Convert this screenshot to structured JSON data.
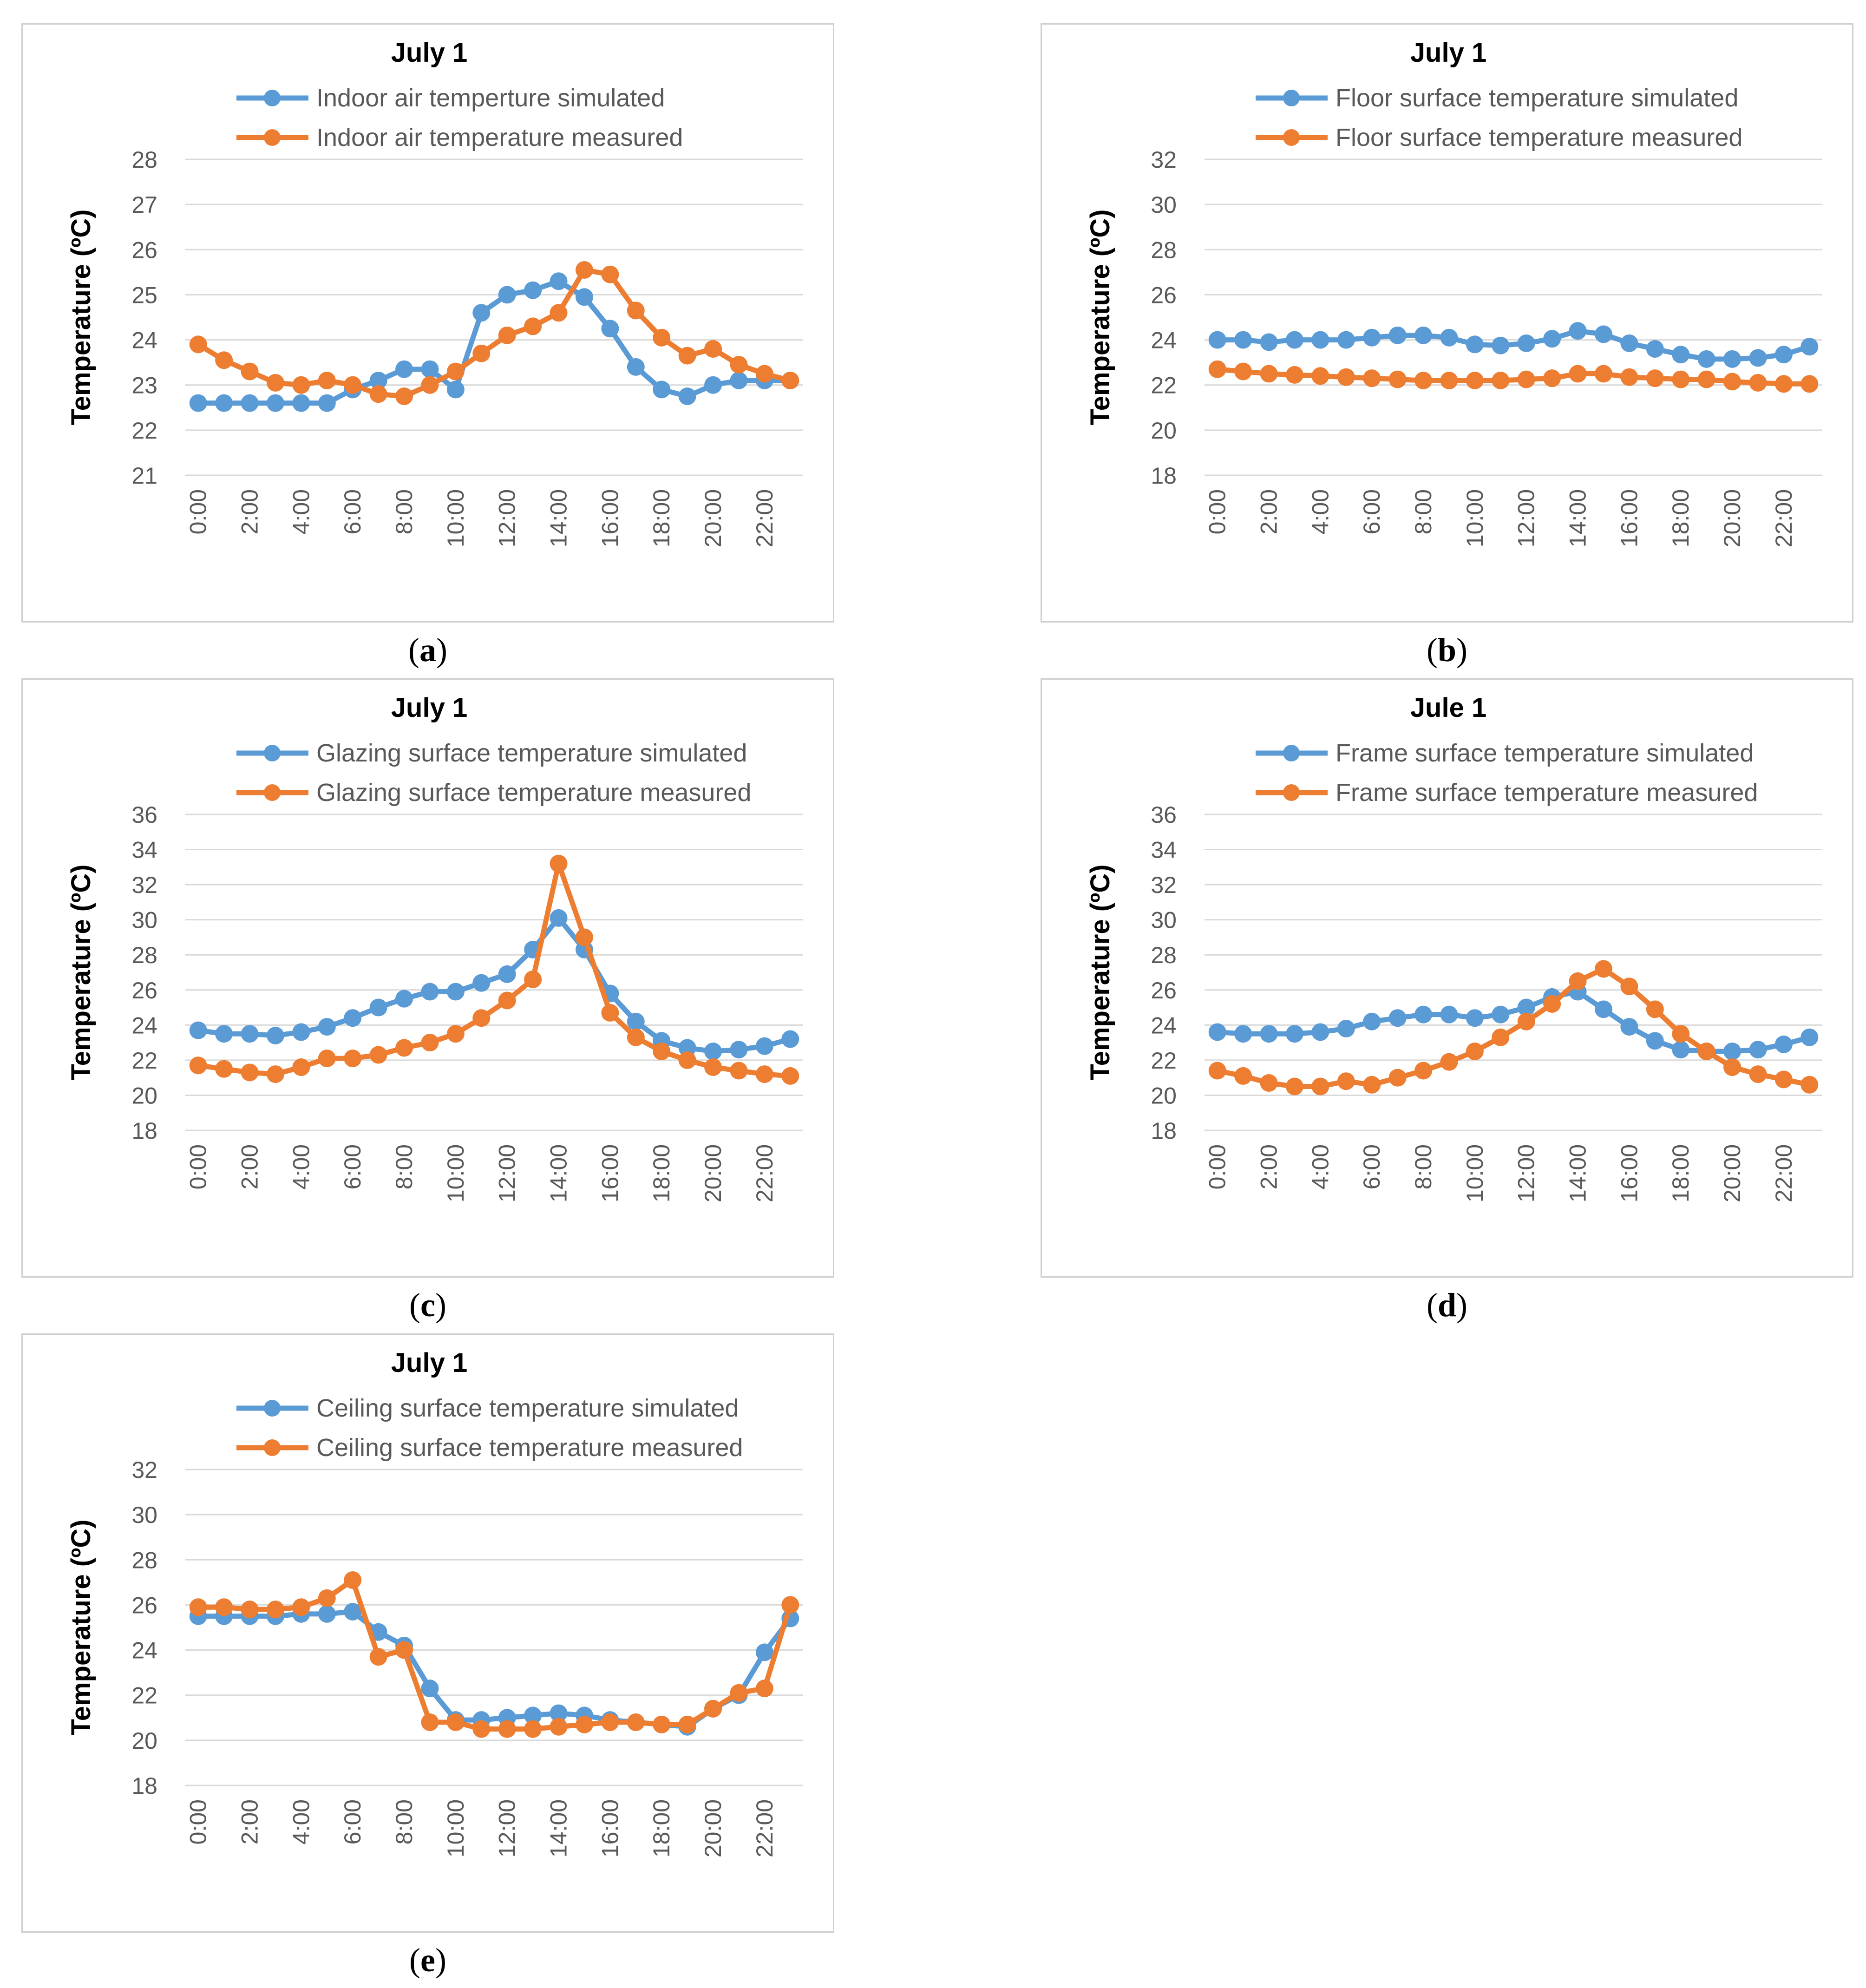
{
  "colors": {
    "simulated": "#5b9bd5",
    "measured": "#ed7d31"
  },
  "chart_data": [
    {
      "type": "line",
      "panel_label": "a",
      "title": "July 1",
      "ylabel": "Temperature (ºC)",
      "xlabel": "",
      "ylim": [
        21,
        28
      ],
      "yticks": [
        21,
        22,
        23,
        24,
        25,
        26,
        27,
        28
      ],
      "x": [
        0,
        1,
        2,
        3,
        4,
        5,
        6,
        7,
        8,
        9,
        10,
        11,
        12,
        13,
        14,
        15,
        16,
        17,
        18,
        19,
        20,
        21,
        22,
        23
      ],
      "xtick_labels": [
        "0:00",
        "2:00",
        "4:00",
        "6:00",
        "8:00",
        "10:00",
        "12:00",
        "14:00",
        "16:00",
        "18:00",
        "20:00",
        "22:00"
      ],
      "series": [
        {
          "name": "Indoor air temperture simulated",
          "values": [
            22.6,
            22.6,
            22.6,
            22.6,
            22.6,
            22.6,
            22.9,
            23.1,
            23.35,
            23.35,
            22.9,
            24.6,
            25.0,
            25.1,
            25.3,
            24.95,
            24.25,
            23.4,
            22.9,
            22.75,
            23.0,
            23.1,
            23.1,
            23.1
          ]
        },
        {
          "name": "Indoor air temperature measured",
          "values": [
            23.9,
            23.55,
            23.3,
            23.05,
            23.0,
            23.1,
            23.0,
            22.8,
            22.75,
            23.0,
            23.3,
            23.7,
            24.1,
            24.3,
            24.6,
            25.55,
            25.45,
            24.65,
            24.05,
            23.65,
            23.8,
            23.45,
            23.25,
            23.1
          ]
        }
      ]
    },
    {
      "type": "line",
      "panel_label": "b",
      "title": "July 1",
      "ylabel": "Temperature (ºC)",
      "xlabel": "",
      "ylim": [
        18,
        32
      ],
      "yticks": [
        18,
        20,
        22,
        24,
        26,
        28,
        30,
        32
      ],
      "x": [
        0,
        1,
        2,
        3,
        4,
        5,
        6,
        7,
        8,
        9,
        10,
        11,
        12,
        13,
        14,
        15,
        16,
        17,
        18,
        19,
        20,
        21,
        22,
        23
      ],
      "xtick_labels": [
        "0:00",
        "2:00",
        "4:00",
        "6:00",
        "8:00",
        "10:00",
        "12:00",
        "14:00",
        "16:00",
        "18:00",
        "20:00",
        "22:00"
      ],
      "series": [
        {
          "name": "Floor surface temperature simulated",
          "values": [
            24.0,
            24.0,
            23.9,
            24.0,
            24.0,
            24.0,
            24.1,
            24.2,
            24.2,
            24.1,
            23.8,
            23.75,
            23.85,
            24.05,
            24.4,
            24.25,
            23.85,
            23.6,
            23.35,
            23.15,
            23.15,
            23.2,
            23.35,
            23.7
          ]
        },
        {
          "name": "Floor surface temperature measured",
          "values": [
            22.7,
            22.6,
            22.5,
            22.45,
            22.4,
            22.35,
            22.3,
            22.25,
            22.2,
            22.2,
            22.2,
            22.2,
            22.25,
            22.3,
            22.5,
            22.5,
            22.35,
            22.3,
            22.25,
            22.25,
            22.15,
            22.1,
            22.05,
            22.05
          ]
        }
      ]
    },
    {
      "type": "line",
      "panel_label": "c",
      "title": "July 1",
      "ylabel": "Temperature (ºC)",
      "xlabel": "",
      "ylim": [
        18,
        36
      ],
      "yticks": [
        18,
        20,
        22,
        24,
        26,
        28,
        30,
        32,
        34,
        36
      ],
      "x": [
        0,
        1,
        2,
        3,
        4,
        5,
        6,
        7,
        8,
        9,
        10,
        11,
        12,
        13,
        14,
        15,
        16,
        17,
        18,
        19,
        20,
        21,
        22,
        23
      ],
      "xtick_labels": [
        "0:00",
        "2:00",
        "4:00",
        "6:00",
        "8:00",
        "10:00",
        "12:00",
        "14:00",
        "16:00",
        "18:00",
        "20:00",
        "22:00"
      ],
      "series": [
        {
          "name": "Glazing surface temperature simulated",
          "values": [
            23.7,
            23.5,
            23.5,
            23.4,
            23.6,
            23.9,
            24.4,
            25.0,
            25.5,
            25.9,
            25.9,
            26.4,
            26.9,
            28.3,
            30.1,
            28.3,
            25.8,
            24.2,
            23.1,
            22.7,
            22.5,
            22.6,
            22.8,
            23.2
          ]
        },
        {
          "name": "Glazing surface temperature measured",
          "values": [
            21.7,
            21.5,
            21.3,
            21.2,
            21.6,
            22.1,
            22.1,
            22.3,
            22.7,
            23.0,
            23.5,
            24.4,
            25.4,
            26.6,
            33.2,
            29.0,
            24.7,
            23.3,
            22.5,
            22.0,
            21.6,
            21.4,
            21.2,
            21.1
          ]
        }
      ]
    },
    {
      "type": "line",
      "panel_label": "d",
      "title": "Jule 1",
      "ylabel": "Temperature (ºC)",
      "xlabel": "",
      "ylim": [
        18,
        36
      ],
      "yticks": [
        18,
        20,
        22,
        24,
        26,
        28,
        30,
        32,
        34,
        36
      ],
      "x": [
        0,
        1,
        2,
        3,
        4,
        5,
        6,
        7,
        8,
        9,
        10,
        11,
        12,
        13,
        14,
        15,
        16,
        17,
        18,
        19,
        20,
        21,
        22,
        23
      ],
      "xtick_labels": [
        "0:00",
        "2:00",
        "4:00",
        "6:00",
        "8:00",
        "10:00",
        "12:00",
        "14:00",
        "16:00",
        "18:00",
        "20:00",
        "22:00"
      ],
      "series": [
        {
          "name": "Frame surface temperature simulated",
          "values": [
            23.6,
            23.5,
            23.5,
            23.5,
            23.6,
            23.8,
            24.2,
            24.4,
            24.6,
            24.6,
            24.4,
            24.6,
            25.0,
            25.6,
            25.9,
            24.9,
            23.9,
            23.1,
            22.6,
            22.5,
            22.5,
            22.6,
            22.9,
            23.3
          ]
        },
        {
          "name": "Frame surface temperature measured",
          "values": [
            21.4,
            21.1,
            20.7,
            20.5,
            20.5,
            20.8,
            20.6,
            21.0,
            21.4,
            21.9,
            22.5,
            23.3,
            24.2,
            25.2,
            26.5,
            27.2,
            26.2,
            24.9,
            23.5,
            22.5,
            21.6,
            21.2,
            20.9,
            20.6
          ]
        }
      ]
    },
    {
      "type": "line",
      "panel_label": "e",
      "title": "July 1",
      "ylabel": "Temperature (ºC)",
      "xlabel": "",
      "ylim": [
        18,
        32
      ],
      "yticks": [
        18,
        20,
        22,
        24,
        26,
        28,
        30,
        32
      ],
      "x": [
        0,
        1,
        2,
        3,
        4,
        5,
        6,
        7,
        8,
        9,
        10,
        11,
        12,
        13,
        14,
        15,
        16,
        17,
        18,
        19,
        20,
        21,
        22,
        23
      ],
      "xtick_labels": [
        "0:00",
        "2:00",
        "4:00",
        "6:00",
        "8:00",
        "10:00",
        "12:00",
        "14:00",
        "16:00",
        "18:00",
        "20:00",
        "22:00"
      ],
      "series": [
        {
          "name": "Ceiling surface temperature simulated",
          "values": [
            25.5,
            25.5,
            25.5,
            25.5,
            25.6,
            25.6,
            25.7,
            24.8,
            24.2,
            22.3,
            20.9,
            20.9,
            21.0,
            21.1,
            21.2,
            21.1,
            20.9,
            20.8,
            20.7,
            20.6,
            21.4,
            22.0,
            23.9,
            25.4
          ]
        },
        {
          "name": "Ceiling surface temperature measured",
          "values": [
            25.9,
            25.9,
            25.8,
            25.8,
            25.9,
            26.3,
            27.1,
            23.7,
            24.0,
            20.8,
            20.8,
            20.5,
            20.5,
            20.5,
            20.6,
            20.7,
            20.8,
            20.8,
            20.7,
            20.7,
            21.4,
            22.1,
            22.3,
            26.0
          ]
        }
      ]
    }
  ]
}
